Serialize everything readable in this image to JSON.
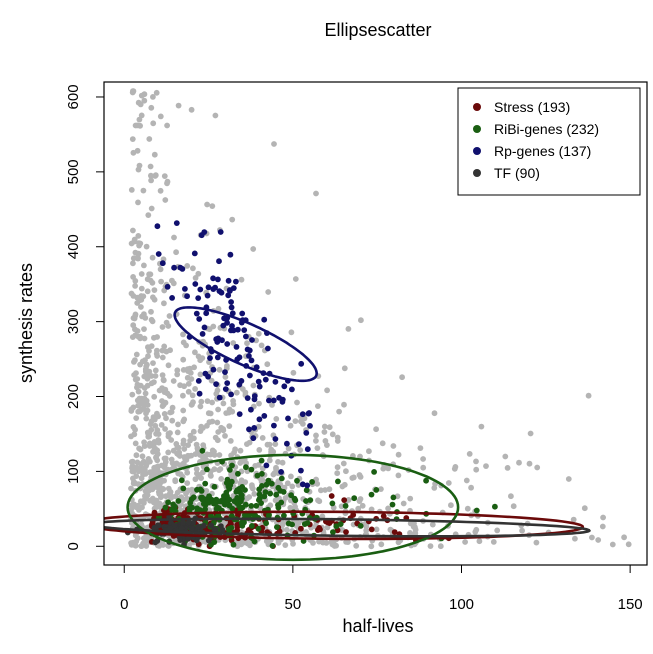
{
  "chart_data": {
    "type": "scatter",
    "title": "Ellipsescatter",
    "xlabel": "half-lives",
    "ylabel": "synthesis rates",
    "xlim": [
      -6,
      155
    ],
    "ylim": [
      -25,
      620
    ],
    "xticks": [
      0,
      50,
      100,
      150
    ],
    "yticks": [
      0,
      100,
      200,
      300,
      400,
      500,
      600
    ],
    "legend_position": "top-right",
    "background_color": "#b4b4b4",
    "series": [
      {
        "name": "Stress (193)",
        "color": "#6b0a0a",
        "ellipse": {
          "cx": 62,
          "cy": 28,
          "rx": 74,
          "ry": 18,
          "angle": -1.8
        },
        "cluster": {
          "count": 193,
          "cx": 30,
          "cy": 28,
          "sx": 20,
          "sy": 20,
          "seed": 11
        }
      },
      {
        "name": "RiBi-genes (232)",
        "color": "#1a5e12",
        "ellipse": {
          "cx": 50,
          "cy": 52,
          "rx": 49,
          "ry": 70,
          "angle": 0
        },
        "cluster": {
          "count": 232,
          "cx": 42,
          "cy": 50,
          "sx": 16,
          "sy": 28,
          "seed": 23
        }
      },
      {
        "name": "Rp-genes (137)",
        "color": "#10106e",
        "ellipse": {
          "cx": 36,
          "cy": 270,
          "rx": 52,
          "ry": 12,
          "angle": -70
        },
        "cluster": {
          "count": 137,
          "cx": 34,
          "cy": 260,
          "sx": 7,
          "sy": 75,
          "seed": 37
        }
      },
      {
        "name": "TF (90)",
        "color": "#333333",
        "ellipse": {
          "cx": 64,
          "cy": 25,
          "rx": 74,
          "ry": 11,
          "angle": -3.2
        },
        "cluster": {
          "count": 90,
          "cx": 17,
          "cy": 22,
          "sx": 6,
          "sy": 7,
          "seed": 53
        }
      }
    ],
    "background_points": {
      "count": 1400,
      "seed": 97
    }
  }
}
